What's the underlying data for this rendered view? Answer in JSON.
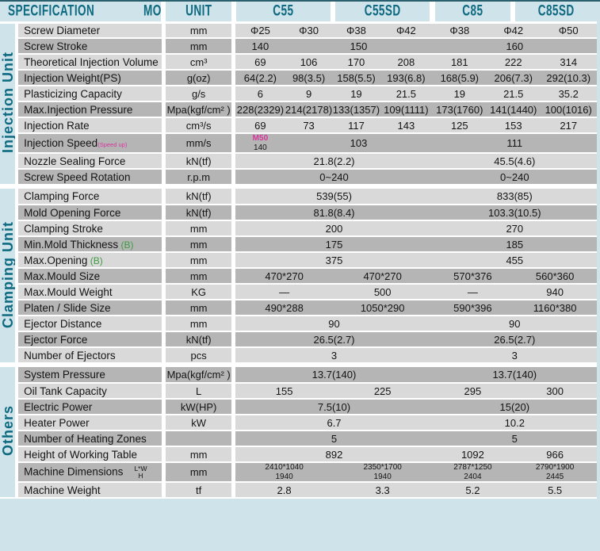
{
  "header": {
    "spec": "SPECIFICATION",
    "model": "MODEL",
    "unit": "UNIT",
    "models": [
      "C55",
      "C55SD",
      "C85",
      "C85SD"
    ]
  },
  "colors": {
    "teal": "#0e6a81",
    "pale_blue": "#cfe3ea",
    "row_light": "#d9d9d9",
    "row_dark": "#b5b5b5",
    "pink": "#d6359c",
    "green": "#3f9b45"
  },
  "sections": [
    {
      "label": "Injection Unit",
      "rows": [
        {
          "name": "Screw Diameter",
          "unit": "mm",
          "cells": [
            {
              "t": "Φ25",
              "c": 1
            },
            {
              "t": "Φ30",
              "c": 1
            },
            {
              "t": "Φ38",
              "c": 1
            },
            {
              "t": "Φ42",
              "c": 1
            },
            {
              "t": "Φ38",
              "c": 1
            },
            {
              "t": "Φ42",
              "c": 2
            },
            {
              "t": "Φ50",
              "c": 1
            }
          ]
        },
        {
          "name": "Screw Stroke",
          "unit": "mm",
          "cells": [
            {
              "t": "140",
              "c": 1
            },
            {
              "t": "150",
              "c": 3
            },
            {
              "t": "160",
              "c": 4
            }
          ]
        },
        {
          "name": "Theoretical Injection Volume",
          "unit": "cm³",
          "cells": [
            {
              "t": "69",
              "c": 1
            },
            {
              "t": "106",
              "c": 1
            },
            {
              "t": "170",
              "c": 1
            },
            {
              "t": "208",
              "c": 1
            },
            {
              "t": "181",
              "c": 1
            },
            {
              "t": "222",
              "c": 2
            },
            {
              "t": "314",
              "c": 1
            }
          ]
        },
        {
          "name": "Injection Weight(PS)",
          "unit": "g(oz)",
          "cells": [
            {
              "t": "64(2.2)",
              "c": 1
            },
            {
              "t": "98(3.5)",
              "c": 1
            },
            {
              "t": "158(5.5)",
              "c": 1
            },
            {
              "t": "193(6.8)",
              "c": 1
            },
            {
              "t": "168(5.9)",
              "c": 1
            },
            {
              "t": "206(7.3)",
              "c": 2
            },
            {
              "t": "292(10.3)",
              "c": 1
            }
          ]
        },
        {
          "name": "Plasticizing Capacity",
          "unit": "g/s",
          "cells": [
            {
              "t": "6",
              "c": 1
            },
            {
              "t": "9",
              "c": 1
            },
            {
              "t": "19",
              "c": 1
            },
            {
              "t": "21.5",
              "c": 1
            },
            {
              "t": "19",
              "c": 1
            },
            {
              "t": "21.5",
              "c": 2
            },
            {
              "t": "35.2",
              "c": 1
            }
          ]
        },
        {
          "name": "Max.Injection Pressure",
          "unit": "Mpa(kgf/cm² )",
          "cells": [
            {
              "t": "228(2329)",
              "c": 1
            },
            {
              "t": "214(2178)",
              "c": 1
            },
            {
              "t": "133(1357)",
              "c": 1
            },
            {
              "t": "109(1111)",
              "c": 1
            },
            {
              "t": "173(1760)",
              "c": 1
            },
            {
              "t": "141(1440)",
              "c": 2
            },
            {
              "t": "100(1016)",
              "c": 1
            }
          ]
        },
        {
          "name": "Injection Rate",
          "unit": "cm³/s",
          "cells": [
            {
              "t": "69",
              "c": 1
            },
            {
              "t": "73",
              "c": 1
            },
            {
              "t": "117",
              "c": 1
            },
            {
              "t": "143",
              "c": 1
            },
            {
              "t": "125",
              "c": 1
            },
            {
              "t": "153",
              "c": 2
            },
            {
              "t": "217",
              "c": 1
            }
          ]
        },
        {
          "name": "Injection Speed",
          "suffix": "(Speed up)",
          "suffix_style": "pink",
          "unit": "mm/s",
          "cells": [
            {
              "t": "M50",
              "t2": "140",
              "style": "stacked-pink",
              "c": 1
            },
            {
              "t": "103",
              "c": 3
            },
            {
              "t": "111",
              "c": 4
            }
          ]
        },
        {
          "name": "Nozzle Sealing Force",
          "unit": "kN(tf)",
          "cells": [
            {
              "t": "21.8(2.2)",
              "c": 4
            },
            {
              "t": "45.5(4.6)",
              "c": 4
            }
          ]
        },
        {
          "name": "Screw Speed Rotation",
          "unit": "r.p.m",
          "cells": [
            {
              "t": "0~240",
              "c": 4
            },
            {
              "t": "0~240",
              "c": 4
            }
          ]
        }
      ]
    },
    {
      "label": "Clamping Unit",
      "rows": [
        {
          "name": "Clamping Force",
          "unit": "kN(tf)",
          "cells": [
            {
              "t": "539(55)",
              "c": 4
            },
            {
              "t": "833(85)",
              "c": 4
            }
          ]
        },
        {
          "name": "Mold Opening Force",
          "unit": "kN(tf)",
          "cells": [
            {
              "t": "81.8(8.4)",
              "c": 4
            },
            {
              "t": "103.3(10.5)",
              "c": 4
            }
          ]
        },
        {
          "name": "Clamping Stroke",
          "unit": "mm",
          "cells": [
            {
              "t": "200",
              "c": 4
            },
            {
              "t": "270",
              "c": 4
            }
          ]
        },
        {
          "name": "Min.Mold Thickness",
          "suffix": "(B)",
          "suffix_style": "green",
          "unit": "mm",
          "cells": [
            {
              "t": "175",
              "c": 4
            },
            {
              "t": "185",
              "c": 4
            }
          ]
        },
        {
          "name": "Max.Opening",
          "suffix": "(B)",
          "suffix_style": "green",
          "unit": "mm",
          "cells": [
            {
              "t": "375",
              "c": 4
            },
            {
              "t": "455",
              "c": 4
            }
          ]
        },
        {
          "name": "Max.Mould  Size",
          "unit": "mm",
          "cells": [
            {
              "t": "470*270",
              "c": 2
            },
            {
              "t": "470*270",
              "c": 2
            },
            {
              "t": "570*376",
              "c": 2
            },
            {
              "t": "560*360",
              "c": 2
            }
          ]
        },
        {
          "name": "Max.Mould  Weight",
          "unit": "KG",
          "cells": [
            {
              "t": "—",
              "c": 2
            },
            {
              "t": "500",
              "c": 2
            },
            {
              "t": "—",
              "c": 2
            },
            {
              "t": "940",
              "c": 2
            }
          ]
        },
        {
          "name": "Platen /  Slide Size",
          "unit": "mm",
          "cells": [
            {
              "t": "490*288",
              "c": 2
            },
            {
              "t": "1050*290",
              "c": 2
            },
            {
              "t": "590*396",
              "c": 2
            },
            {
              "t": "1160*380",
              "c": 2
            }
          ]
        },
        {
          "name": "Ejector Distance",
          "unit": "mm",
          "cells": [
            {
              "t": "90",
              "c": 4
            },
            {
              "t": "90",
              "c": 4
            }
          ]
        },
        {
          "name": "Ejector Force",
          "unit": "kN(tf)",
          "cells": [
            {
              "t": "26.5(2.7)",
              "c": 4
            },
            {
              "t": "26.5(2.7)",
              "c": 4
            }
          ]
        },
        {
          "name": "Number of Ejectors",
          "unit": "pcs",
          "cells": [
            {
              "t": "3",
              "c": 4
            },
            {
              "t": "3",
              "c": 4
            }
          ]
        }
      ]
    },
    {
      "label": "Others",
      "rows": [
        {
          "name": "System Pressure",
          "unit": "Mpa(kgf/cm² )",
          "cells": [
            {
              "t": "13.7(140)",
              "c": 4
            },
            {
              "t": "13.7(140)",
              "c": 4
            }
          ]
        },
        {
          "name": "Oil Tank Capacity",
          "unit": "L",
          "cells": [
            {
              "t": "155",
              "c": 2
            },
            {
              "t": "225",
              "c": 2
            },
            {
              "t": "295",
              "c": 2
            },
            {
              "t": "300",
              "c": 2
            }
          ]
        },
        {
          "name": "Electric Power",
          "unit": "kW(HP)",
          "cells": [
            {
              "t": "7.5(10)",
              "c": 4
            },
            {
              "t": "15(20)",
              "c": 4
            }
          ]
        },
        {
          "name": "Heater Power",
          "unit": "kW",
          "cells": [
            {
              "t": "6.7",
              "c": 4
            },
            {
              "t": "10.2",
              "c": 4
            }
          ]
        },
        {
          "name": "Number of Heating Zones",
          "unit": "",
          "cells": [
            {
              "t": "5",
              "c": 4
            },
            {
              "t": "5",
              "c": 4
            }
          ]
        },
        {
          "name": "Height of Working Table",
          "unit": "mm",
          "cells": [
            {
              "t": "892",
              "c": 4
            },
            {
              "t": "1092",
              "c": 2
            },
            {
              "t": "966",
              "c": 2
            }
          ]
        },
        {
          "name": "Machine Dimensions",
          "suffix": "L*W\nH",
          "suffix_style": "lwh",
          "unit": "mm",
          "cells": [
            {
              "t": "2410*1040",
              "t2": "1940",
              "style": "stacked",
              "c": 2
            },
            {
              "t": "2350*1700",
              "t2": "1940",
              "style": "stacked",
              "c": 2
            },
            {
              "t": "2787*1250",
              "t2": "2404",
              "style": "stacked",
              "c": 2
            },
            {
              "t": "2790*1900",
              "t2": "2445",
              "style": "stacked",
              "c": 2
            }
          ]
        },
        {
          "name": "Machine Weight",
          "unit": "tf",
          "cells": [
            {
              "t": "2.8",
              "c": 2
            },
            {
              "t": "3.3",
              "c": 2
            },
            {
              "t": "5.2",
              "c": 2
            },
            {
              "t": "5.5",
              "c": 2
            }
          ]
        }
      ]
    }
  ]
}
